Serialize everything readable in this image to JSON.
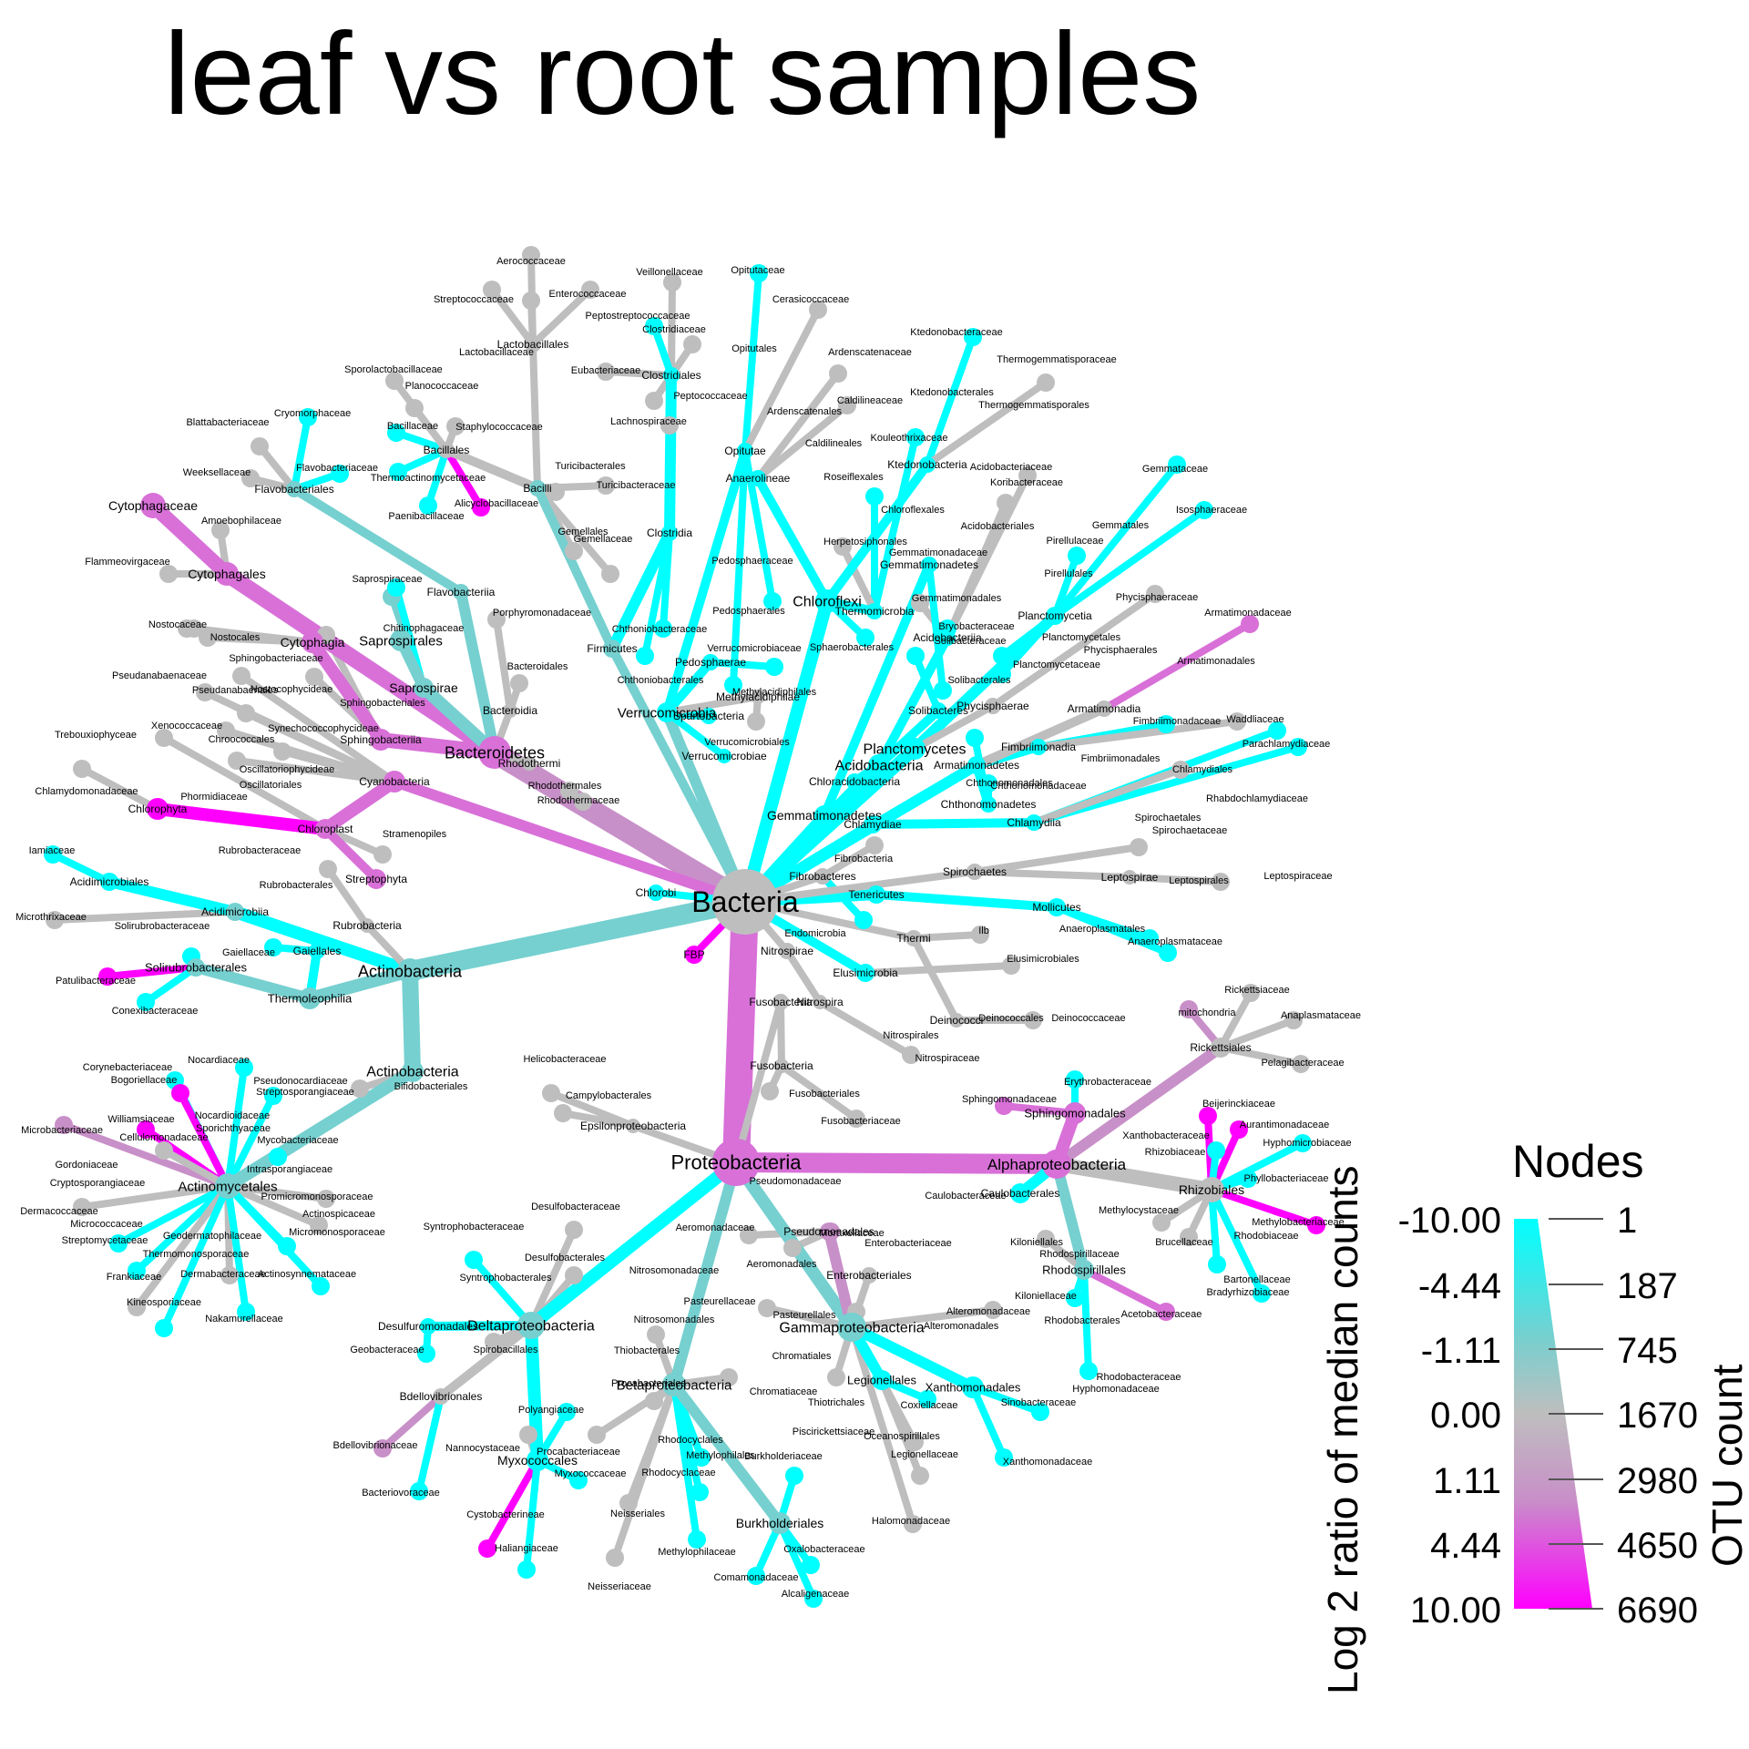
{
  "title": "leaf vs root samples",
  "colors": {
    "cyan": "#00FFFF",
    "teal": "#76D0D0",
    "grey": "#BEBEBE",
    "mauve": "#C890C8",
    "orchid": "#D870D8",
    "magenta": "#FF00FF"
  },
  "legend": {
    "title": "Nodes",
    "color_axis_label": "Log 2 ratio of median counts",
    "size_axis_label": "OTU count",
    "color_ticks": [
      "-10.00",
      "-4.44",
      "-1.11",
      "0.00",
      "1.11",
      "4.44",
      "10.00"
    ],
    "size_ticks": [
      "1",
      "187",
      "745",
      "1670",
      "2980",
      "4650",
      "6690"
    ]
  },
  "tree": {
    "nodes": [
      {
        "id": "Bacteria",
        "label": "Bacteria",
        "c": "grey",
        "s": 36
      },
      {
        "id": "Proteobacteria",
        "label": "Proteobacteria",
        "c": "orchid",
        "s": 26
      },
      {
        "id": "Actinobacteria",
        "label": "Actinobacteria",
        "c": "teal",
        "s": 14
      },
      {
        "id": "Bacteroidetes",
        "label": "Bacteroidetes",
        "c": "orchid",
        "s": 18
      },
      {
        "id": "Firmicutes",
        "label": "Firmicutes",
        "c": "teal",
        "s": 10
      },
      {
        "id": "Chloroflexi",
        "label": "Chloroflexi",
        "c": "cyan",
        "s": 13
      },
      {
        "id": "Acidobacteria",
        "label": "Acidobacteria",
        "c": "cyan",
        "s": 12
      },
      {
        "id": "Planctomycetes",
        "label": "Planctomycetes",
        "c": "cyan",
        "s": 12
      },
      {
        "id": "Verrucomicrobia",
        "label": "Verrucomicrobia",
        "c": "cyan",
        "s": 11
      },
      {
        "id": "Gemmatimonadetes",
        "label": "Gemmatimonadetes",
        "c": "cyan",
        "s": 11
      },
      {
        "id": "Armatimonadetes",
        "label": "Armatimonadetes",
        "c": "cyan",
        "s": 10
      },
      {
        "id": "Chlamydiae",
        "label": "Chlamydiae",
        "c": "cyan",
        "s": 10
      },
      {
        "id": "Tenericutes",
        "label": "Tenericutes",
        "c": "cyan",
        "s": 10
      },
      {
        "id": "Spirochaetes",
        "label": "Spirochaetes",
        "c": "grey",
        "s": 9
      },
      {
        "id": "Fibrobacteres",
        "label": "Fibrobacteres",
        "c": "grey",
        "s": 9
      },
      {
        "id": "Elusimicrobia",
        "label": "Elusimicrobia",
        "c": "cyan",
        "s": 10
      },
      {
        "id": "Nitrospirae",
        "label": "Nitrospirae",
        "c": "grey",
        "s": 9
      },
      {
        "id": "Fusobacteria",
        "label": "Fusobacteria",
        "c": "grey",
        "s": 9
      },
      {
        "id": "Cyanobacteria",
        "label": "Cyanobacteria",
        "c": "orchid",
        "s": 12
      },
      {
        "id": "Chlorobi",
        "label": "Chlorobi",
        "c": "cyan",
        "s": 9
      },
      {
        "id": "FBP",
        "label": "FBP",
        "c": "magenta",
        "s": 10
      },
      {
        "id": "Thermi",
        "label": "Thermi",
        "c": "grey",
        "s": 9
      },
      {
        "id": "Alphaproteobacteria",
        "label": "Alphaproteobacteria",
        "c": "orchid",
        "s": 16
      },
      {
        "id": "Gammaproteobacteria",
        "label": "Gammaproteobacteria",
        "c": "teal",
        "s": 16
      },
      {
        "id": "Deltaproteobacteria",
        "label": "Deltaproteobacteria",
        "c": "teal",
        "s": 15
      },
      {
        "id": "Betaproteobacteria",
        "label": "Betaproteobacteria",
        "c": "teal",
        "s": 13
      },
      {
        "id": "Epsilonproteobacteria",
        "label": "Epsilonproteobacteria",
        "c": "grey",
        "s": 8
      },
      {
        "id": "Actinobacteria_c",
        "label": "Actinobacteria",
        "c": "teal",
        "s": 12
      },
      {
        "id": "Actinomycetales",
        "label": "Actinomycetales",
        "c": "teal",
        "s": 14
      },
      {
        "id": "Acidimicrobiia",
        "label": "Acidimicrobiia",
        "c": "teal",
        "s": 10
      },
      {
        "id": "Acidimicrobiales",
        "label": "Acidimicrobiales",
        "c": "cyan",
        "s": 10
      },
      {
        "id": "Thermoleophilia",
        "label": "Thermoleophilia",
        "c": "teal",
        "s": 12
      },
      {
        "id": "Solirubrobacterales",
        "label": "Solirubrobacterales",
        "c": "teal",
        "s": 10
      },
      {
        "id": "Gaiellales",
        "label": "Gaiellales",
        "c": "cyan",
        "s": 9
      },
      {
        "id": "Rubrobacteria",
        "label": "Rubrobacteria",
        "c": "grey",
        "s": 8
      },
      {
        "id": "Sphingobacteriia",
        "label": "Sphingobacteriia",
        "c": "orchid",
        "s": 12
      },
      {
        "id": "Cytophagia",
        "label": "Cytophagia",
        "c": "orchid",
        "s": 12
      },
      {
        "id": "Cytophagales",
        "label": "Cytophagales",
        "c": "orchid",
        "s": 13
      },
      {
        "id": "Cytophagaceae",
        "label": "Cytophagaceae",
        "c": "orchid",
        "s": 14
      },
      {
        "id": "Saprospirae",
        "label": "Saprospirae",
        "c": "teal",
        "s": 11
      },
      {
        "id": "Saprospirales",
        "label": "Saprospirales",
        "c": "teal",
        "s": 12
      },
      {
        "id": "Flavobacteriia",
        "label": "Flavobacteriia",
        "c": "teal",
        "s": 9
      },
      {
        "id": "Flavobacteriales",
        "label": "Flavobacteriales",
        "c": "teal",
        "s": 9
      },
      {
        "id": "Bacteroidia",
        "label": "Bacteroidia",
        "c": "grey",
        "s": 8
      },
      {
        "id": "Rhodothermi",
        "label": "Rhodothermi",
        "c": "grey",
        "s": 8
      },
      {
        "id": "Bacilli",
        "label": "Bacilli",
        "c": "teal",
        "s": 9
      },
      {
        "id": "Bacillales",
        "label": "Bacillales",
        "c": "grey",
        "s": 9
      },
      {
        "id": "Clostridia",
        "label": "Clostridia",
        "c": "cyan",
        "s": 9
      },
      {
        "id": "Clostridiales",
        "label": "Clostridiales",
        "c": "cyan",
        "s": 9
      },
      {
        "id": "Lactobacillales",
        "label": "Lactobacillales",
        "c": "grey",
        "s": 9
      },
      {
        "id": "Chloroplast",
        "label": "Chloroplast",
        "c": "orchid",
        "s": 11
      },
      {
        "id": "Chlorophyta",
        "label": "Chlorophyta",
        "c": "magenta",
        "s": 12
      },
      {
        "id": "Streptophyta",
        "label": "Streptophyta",
        "c": "orchid",
        "s": 11
      },
      {
        "id": "Rhizobiales",
        "label": "Rhizobiales",
        "c": "grey",
        "s": 14
      },
      {
        "id": "Rickettsiales",
        "label": "Rickettsiales",
        "c": "grey",
        "s": 11
      },
      {
        "id": "Sphingomonadales",
        "label": "Sphingomonadales",
        "c": "orchid",
        "s": 12
      },
      {
        "id": "Caulobacterales",
        "label": "Caulobacterales",
        "c": "cyan",
        "s": 11
      },
      {
        "id": "Rhodospirillales",
        "label": "Rhodospirillales",
        "c": "teal",
        "s": 11
      },
      {
        "id": "Pseudomonadales",
        "label": "Pseudomonadales",
        "c": "mauve",
        "s": 10
      },
      {
        "id": "Xanthomonadales",
        "label": "Xanthomonadales",
        "c": "cyan",
        "s": 12
      },
      {
        "id": "Legionellales",
        "label": "Legionellales",
        "c": "cyan",
        "s": 11
      },
      {
        "id": "Enterobacteriales",
        "label": "Enterobacteriales",
        "c": "grey",
        "s": 9
      },
      {
        "id": "Burkholderiales",
        "label": "Burkholderiales",
        "c": "teal",
        "s": 12
      },
      {
        "id": "Myxococcales",
        "label": "Myxococcales",
        "c": "cyan",
        "s": 12
      },
      {
        "id": "Bdellovibrionales",
        "label": "Bdellovibrionales",
        "c": "grey",
        "s": 9
      },
      {
        "id": "Desulfuromonadales",
        "label": "Desulfuromonadales",
        "c": "cyan",
        "s": 9
      },
      {
        "id": "Ktedonobacteria",
        "label": "Ktedonobacteria",
        "c": "cyan",
        "s": 9
      },
      {
        "id": "Anaerolineae",
        "label": "Anaerolineae",
        "c": "cyan",
        "s": 9
      },
      {
        "id": "Thermomicrobia",
        "label": "Thermomicrobia",
        "c": "cyan",
        "s": 9
      },
      {
        "id": "Acidobacteriia",
        "label": "Acidobacteriia",
        "c": "cyan",
        "s": 9
      },
      {
        "id": "Solibacteres",
        "label": "Solibacteres",
        "c": "cyan",
        "s": 9
      },
      {
        "id": "Chloracidobacteria",
        "label": "Chloracidobacteria",
        "c": "cyan",
        "s": 9
      },
      {
        "id": "Planctomycetia",
        "label": "Planctomycetia",
        "c": "cyan",
        "s": 10
      },
      {
        "id": "Phycisphaerae",
        "label": "Phycisphaerae",
        "c": "grey",
        "s": 9
      },
      {
        "id": "Pedosphaerae",
        "label": "Pedosphaerae",
        "c": "cyan",
        "s": 9
      },
      {
        "id": "Opitutae",
        "label": "Opitutae",
        "c": "cyan",
        "s": 9
      },
      {
        "id": "Verrucomicrobiae",
        "label": "Verrucomicrobiae",
        "c": "cyan",
        "s": 8
      },
      {
        "id": "Spartobacteria",
        "label": "Spartobacteria",
        "c": "cyan",
        "s": 9
      },
      {
        "id": "Methylacidiphilae",
        "label": "Methylacidiphilae",
        "c": "grey",
        "s": 8
      },
      {
        "id": "Gemmatimonadetes_c",
        "label": "Gemmatimonadetes",
        "c": "cyan",
        "s": 9
      },
      {
        "id": "Chthonomonadetes",
        "label": "Chthonomonadetes",
        "c": "cyan",
        "s": 9
      },
      {
        "id": "Fimbriimonadia",
        "label": "Fimbriimonadia",
        "c": "cyan",
        "s": 9
      },
      {
        "id": "Armatimonadia",
        "label": "Armatimonadia",
        "c": "grey",
        "s": 9
      },
      {
        "id": "Chlamydiia",
        "label": "Chlamydiia",
        "c": "cyan",
        "s": 9
      },
      {
        "id": "Mollicutes",
        "label": "Mollicutes",
        "c": "cyan",
        "s": 10
      },
      {
        "id": "Leptospirae",
        "label": "Leptospirae",
        "c": "grey",
        "s": 8
      },
      {
        "id": "Deinococci",
        "label": "Deinococci",
        "c": "grey",
        "s": 8
      },
      {
        "id": "Nitrospira",
        "label": "Nitrospira",
        "c": "grey",
        "s": 8
      },
      {
        "id": "Fusobacteria_c",
        "label": "Fusobacteria",
        "c": "grey",
        "s": 8
      }
    ],
    "labels_only": [
      "Aerococcaceae",
      "Streptococcaceae",
      "Enterococcaceae",
      "Lactobacillaceae",
      "Veillonellaceae",
      "Opitutaceae",
      "Peptostreptococcaceae",
      "Cerasicoccaceae",
      "Clostridiaceae",
      "Opitutales",
      "Eubacteriaceae",
      "Peptococcaceae",
      "Ardenscatenaceae",
      "Ktedonobacteraceae",
      "Thermogemmatisporaceae",
      "Caldilineaceae",
      "Ardenscatenales",
      "Ktedonobacterales",
      "Thermogemmatisporales",
      "Caldilineales",
      "Kouleothrixaceae",
      "Roseiflexales",
      "Chloroflexales",
      "Herpetosiphonales",
      "Gemmatimonadaceae",
      "Gemmatales",
      "Gemmataceae",
      "Isosphaeraceae",
      "Pirellulaceae",
      "Pirellulales",
      "Koribacteraceae",
      "Acidobacteriaceae",
      "Acidobacteriales",
      "Phycisphaeraceae",
      "Phycisphaerales",
      "Armatimonadaceae",
      "Armatimonadales",
      "Fimbriimonadaceae",
      "Fimbriimonadales",
      "Waddliaceae",
      "Parachlamydiaceae",
      "Chlamydiales",
      "Rhabdochlamydiaceae",
      "Spirochaetales",
      "Spirochaetaceae",
      "Leptospirales",
      "Leptospiraceae",
      "Anaeroplasmatales",
      "Anaeroplasmataceae",
      "Elusimicrobiales",
      "Ilb",
      "Deinococcales",
      "Deinococcaceae",
      "Nitrospirales",
      "Nitrospiraceae",
      "Fusobacteriales",
      "Fusobacteriaceae",
      "Rickettsiaceae",
      "mitochondria",
      "Anaplasmataceae",
      "Pelagibacteraceae",
      "Erythrobacteraceae",
      "Sphingomonadaceae",
      "Beijerinckiaceae",
      "Aurantimonadaceae",
      "Hyphomicrobiaceae",
      "Xanthobacteraceae",
      "Rhizobiaceae",
      "Phyllobacteriaceae",
      "Methylocystaceae",
      "Methylobacteriaceae",
      "Brucellaceae",
      "Rhodobiaceae",
      "Bartonellaceae",
      "Bradyrhizobiaceae",
      "Caulobacteraceae",
      "Kiloniellales",
      "Kiloniellaceae",
      "Rhodospirillaceae",
      "Acetobacteraceae",
      "Rhodobacterales",
      "Rhodobacteraceae",
      "Hyphomonadaceae",
      "Sinobacteraceae",
      "Xanthomonadaceae",
      "Coxiellaceae",
      "Legionellaceae",
      "Oceanospirillales",
      "Halomonadaceae",
      "Alteromonadales",
      "Alteromonadaceae",
      "Enterobacteriaceae",
      "Moraxellaceae",
      "Pseudomonadaceae",
      "Pasteurellales",
      "Pasteurellaceae",
      "Aeromonadales",
      "Aeromonadaceae",
      "Thiotrichales",
      "Piscirickettsiaceae",
      "Chromatiales",
      "Chromatiaceae",
      "Nitrosomonadales",
      "Nitrosomonadaceae",
      "Thiobacterales",
      "Procabacteriales",
      "Procabacteriaceae",
      "Rhodocyclales",
      "Rhodocyclaceae",
      "Methylophilales",
      "Methylophilaceae",
      "Neisseriales",
      "Neisseriaceae",
      "Burkholderiaceae",
      "Oxalobacteraceae",
      "Comamonadaceae",
      "Alcaligenaceae",
      "Desulfobacteraceae",
      "Desulfobacterales",
      "Syntrophobacteraceae",
      "Syntrophobacterales",
      "Spirobacillales",
      "Geobacteraceae",
      "Polyangiaceae",
      "Nannocystaceae",
      "Myxococcaceae",
      "Cystobacterineae",
      "Haliangiaceae",
      "Bdellovibrionaceae",
      "Bacteriovoraceae",
      "Helicobacteraceae",
      "Campylobacterales",
      "Nocardiaceae",
      "Corynebacteriaceae",
      "Bogoriellaceae",
      "Pseudonocardiaceae",
      "Streptosporangiaceae",
      "Nocardioidaceae",
      "Williamsiaceae",
      "Sporichthyaceae",
      "Microbacteriaceae",
      "Cellulomonadaceae",
      "Mycobacteriaceae",
      "Gordoniaceae",
      "Intrasporangiaceae",
      "Cryptosporangiaceae",
      "Promicromonosporaceae",
      "Dermacoccaceae",
      "Actinospicaceae",
      "Micrococcaceae",
      "Micromonosporaceae",
      "Streptomycetaceae",
      "Geodermatophilaceae",
      "Thermomonosporaceae",
      "Frankiaceae",
      "Dermabacteraceae",
      "Actinosynnemataceae",
      "Kineosporiaceae",
      "Nakamurellaceae",
      "Bifidobacteriales",
      "Iamiaceae",
      "Microthrixaceae",
      "Solirubrobacteraceae",
      "Gaiellaceae",
      "Patulibacteraceae",
      "Conexibacteraceae",
      "Rubrobacteraceae",
      "Rubrobacterales",
      "Chlamydomonadaceae",
      "Trebouxiophyceae",
      "Phormidiaceae",
      "Oscillatoriales",
      "Oscillatoriophycideae",
      "Chroococcales",
      "Xenococcaceae",
      "Synechococcophycideae",
      "Pseudanabaenales",
      "Pseudanabaenaceae",
      "Nostocophycideae",
      "Nostocales",
      "Nostocaceae",
      "Stramenopiles",
      "Flammeovirgaceae",
      "Amoebophilaceae",
      "Sphingobacteriaceae",
      "Sphingobacteriales",
      "Chitinophagaceae",
      "Saprospiraceae",
      "Weeksellaceae",
      "Blattabacteriaceae",
      "Cryomorphaceae",
      "Flavobacteriaceae",
      "Porphyromonadaceae",
      "Bacteroidales",
      "Rhodothermales",
      "Rhodothermaceae",
      "Bacillaceae",
      "Planococcaceae",
      "Sporolactobacillaceae",
      "Staphylococcaceae",
      "Thermoactinomycetaceae",
      "Paenibacillaceae",
      "Alicyclobacillaceae",
      "Turicibacterales",
      "Turicibacteraceae",
      "Gemellales",
      "Gemellaceae",
      "Lachnospiraceae",
      "Chthoniobacteraceae",
      "Chthoniobacterales",
      "Pedosphaeraceae",
      "Pedosphaerales",
      "Verrucomicrobiaceae",
      "Verrucomicrobiales",
      "Methylacidiphilales",
      "Sphaerobacterales",
      "Bryobacteraceae",
      "Solibacteraceae",
      "Solibacterales",
      "Gemmatimonadales",
      "Planctomycetales",
      "Planctomycetaceae",
      "Chthonomonadales",
      "Chthonomonadaceae",
      "Fibrobacteria",
      "Endomicrobia"
    ]
  }
}
